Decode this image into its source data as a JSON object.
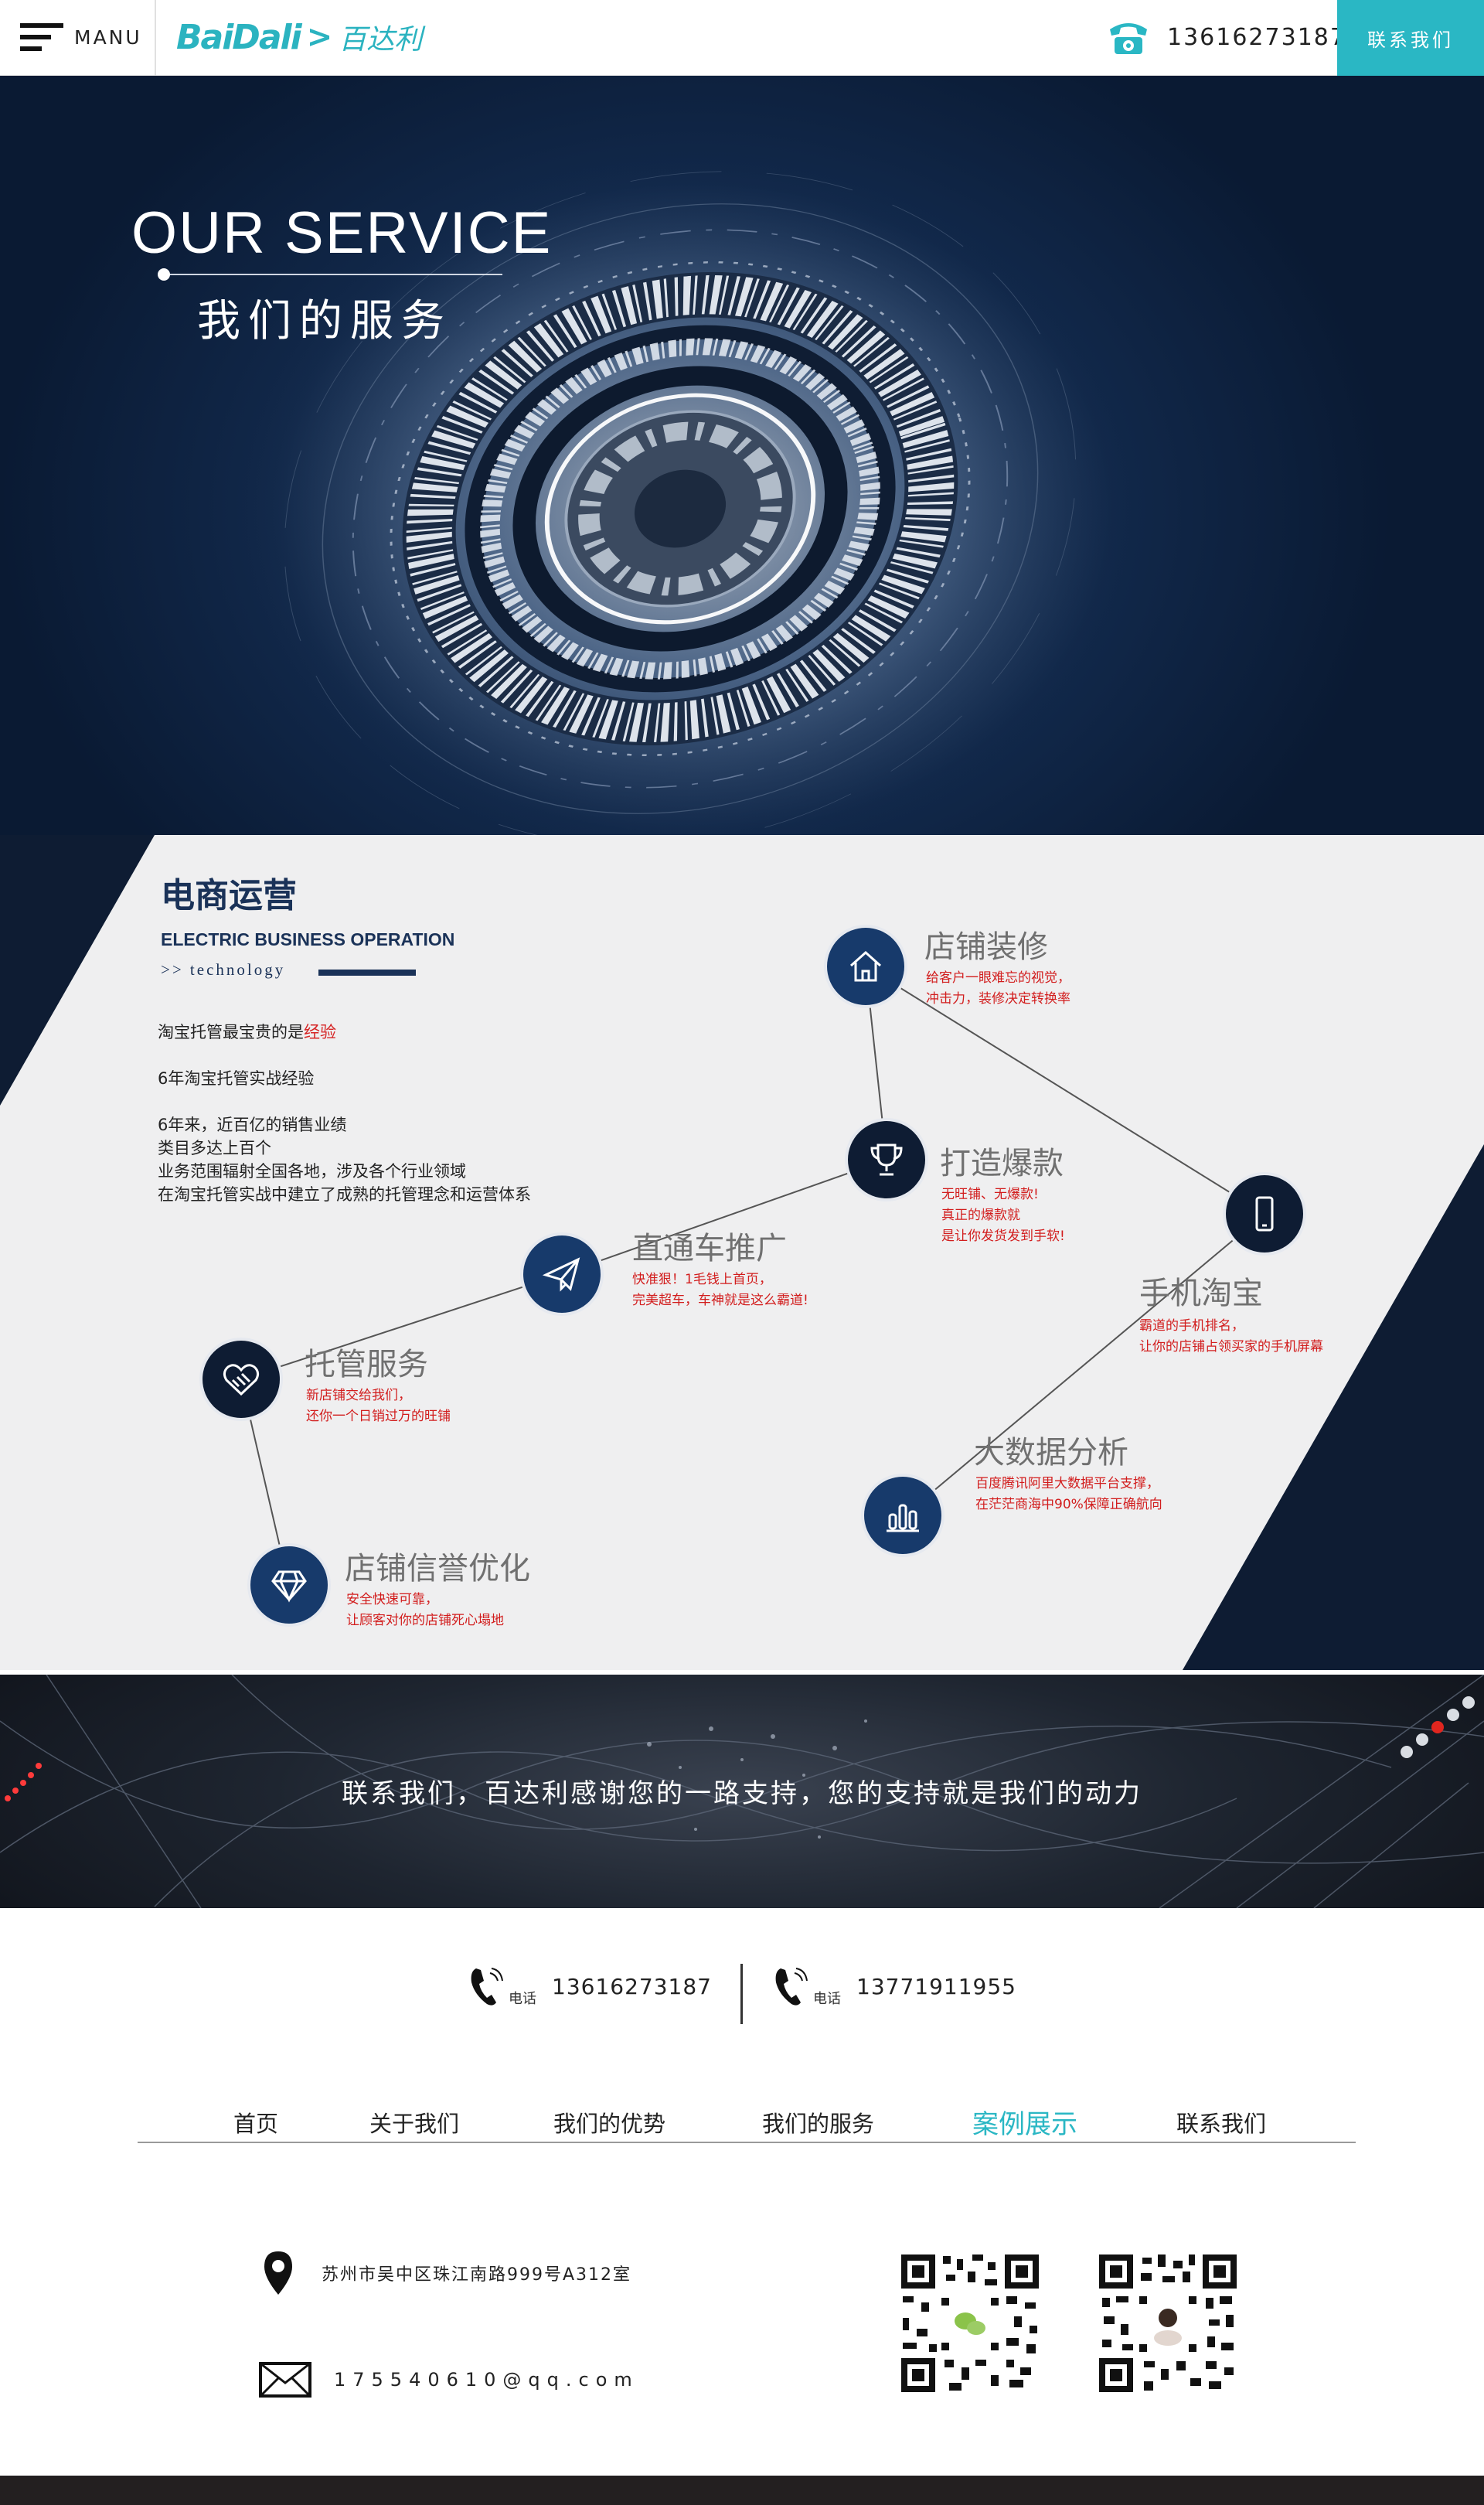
{
  "header": {
    "menu_label": "MANU",
    "logo_en": "BaiDali",
    "logo_arrow": ">",
    "logo_cn": "百达利",
    "phone": "13616273187",
    "contact_button": "联系我们",
    "accent_color": "#2ab7c4"
  },
  "hero": {
    "title_en": "OUR SERVICE",
    "title_cn": "我们的服务"
  },
  "service": {
    "title_cn": "电商运营",
    "title_en": "ELECTRIC BUSINESS OPERATION",
    "tech_label": ">> technology",
    "intro_prefix": "淘宝托管最宝贵的是",
    "intro_highlight": "经验",
    "line1": "6年淘宝托管实战经验",
    "line2": "6年来，近百亿的销售业绩",
    "line3": "类目多达上百个",
    "line4": "业务范围辐射全国各地，涉及各个行业领域",
    "line5": "在淘宝托管实战中建立了成熟的托管理念和运营体系",
    "nodes": [
      {
        "title": "店铺装修",
        "desc1": "给客户一眼难忘的视觉，",
        "desc2": "冲击力，装修决定转换率",
        "icon": "home-icon"
      },
      {
        "title": "打造爆款",
        "desc1": "无旺铺、无爆款!",
        "desc2": "真正的爆款就",
        "desc3": "是让你发货发到手软!",
        "icon": "trophy-icon"
      },
      {
        "title": "手机淘宝",
        "desc1": "霸道的手机排名，",
        "desc2": "让你的店铺占领买家的手机屏幕",
        "icon": "mobile-icon"
      },
      {
        "title": "直通车推广",
        "desc1": "快准狠！1毛钱上首页，",
        "desc2": "完美超车，车神就是这么霸道!",
        "icon": "paper-plane-icon"
      },
      {
        "title": "托管服务",
        "desc1": "新店铺交给我们，",
        "desc2": "还你一个日销过万的旺铺",
        "icon": "handshake-heart-icon"
      },
      {
        "title": "大数据分析",
        "desc1": "百度腾讯阿里大数据平台支撑，",
        "desc2": "在茫茫商海中90%保障正确航向",
        "icon": "bar-chart-icon"
      },
      {
        "title": "店铺信誉优化",
        "desc1": "安全快速可靠，",
        "desc2": "让顾客对你的店铺死心塌地",
        "icon": "diamond-icon"
      }
    ]
  },
  "banner": {
    "text": "联系我们，百达利感谢您的一路支持，您的支持就是我们的动力"
  },
  "footer": {
    "phone_label": "电话",
    "phone1": "13616273187",
    "phone2": "13771911955",
    "nav": [
      "首页",
      "关于我们",
      "我们的优势",
      "我们的服务",
      "案例展示",
      "联系我们"
    ],
    "active_nav": "案例展示",
    "address": "苏州市吴中区珠江南路999号A312室",
    "email": "175540610@qq.com"
  }
}
